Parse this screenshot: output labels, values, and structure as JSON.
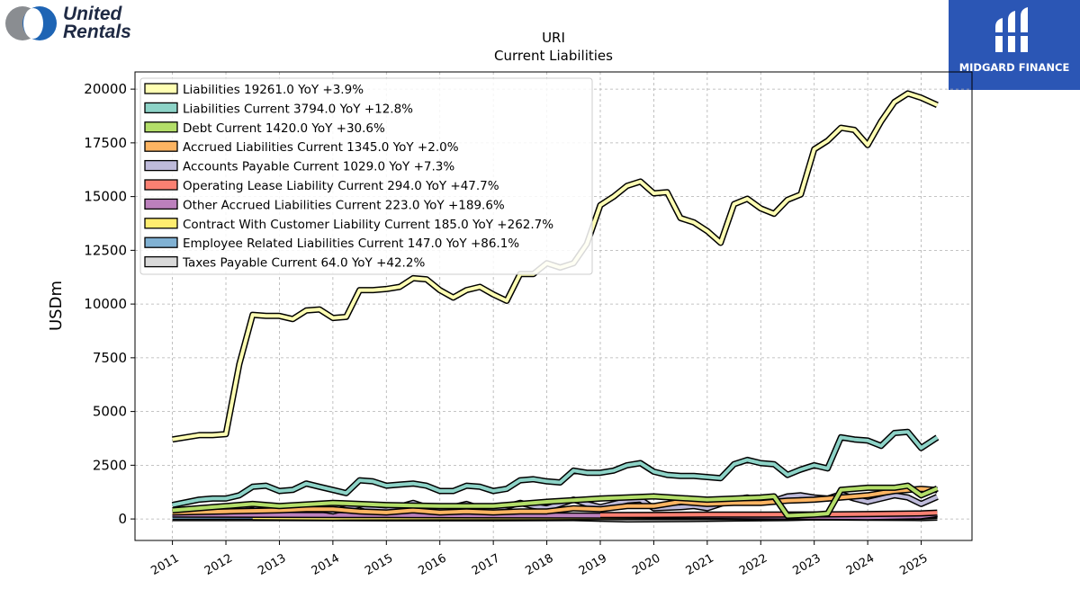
{
  "brand_left": {
    "line1": "United",
    "line2": "Rentals",
    "colors": [
      "#8a8d91",
      "#1e64b4"
    ]
  },
  "brand_right": {
    "text": "MIDGARD FINANCE",
    "color": "#2b56b5"
  },
  "chart_data": {
    "type": "line",
    "title": "URI",
    "subtitle": "Current  Liabilities",
    "xlabel": "",
    "ylabel": "USDm",
    "ylim": [
      -1000,
      20800
    ],
    "xlim": [
      2010.3,
      2025.95
    ],
    "yticks": [
      0,
      2500,
      5000,
      7500,
      10000,
      12500,
      15000,
      17500,
      20000
    ],
    "xticks": [
      "2011",
      "2012",
      "2013",
      "2014",
      "2015",
      "2016",
      "2017",
      "2018",
      "2019",
      "2020",
      "2021",
      "2022",
      "2023",
      "2024",
      "2025"
    ],
    "grid": true,
    "legend_position": "top-left",
    "series": [
      {
        "name": "Liabilities",
        "legend": "Liabilities  19261.0 YoY +3.9%",
        "color": "#ffffb3",
        "x": [
          2011,
          2011.5,
          2011.75,
          2012,
          2012.25,
          2012.5,
          2012.75,
          2013,
          2013.25,
          2013.5,
          2013.75,
          2014,
          2014.25,
          2014.5,
          2014.75,
          2015,
          2015.25,
          2015.5,
          2015.75,
          2016,
          2016.25,
          2016.5,
          2016.75,
          2017,
          2017.25,
          2017.5,
          2017.75,
          2018,
          2018.25,
          2018.5,
          2018.75,
          2019,
          2019.25,
          2019.5,
          2019.75,
          2020,
          2020.25,
          2020.5,
          2020.75,
          2021,
          2021.25,
          2021.5,
          2021.75,
          2022,
          2022.25,
          2022.5,
          2022.75,
          2023,
          2023.25,
          2023.5,
          2023.75,
          2024,
          2024.25,
          2024.5,
          2024.75,
          2025,
          2025.3
        ],
        "values": [
          3700,
          3900,
          3900,
          3950,
          7200,
          9500,
          9450,
          9450,
          9300,
          9700,
          9750,
          9350,
          9400,
          10650,
          10650,
          10700,
          10800,
          11200,
          11150,
          10650,
          10300,
          10650,
          10800,
          10450,
          10150,
          11400,
          11400,
          11900,
          11700,
          11900,
          12800,
          14600,
          15000,
          15500,
          15700,
          15150,
          15200,
          14000,
          13800,
          13400,
          12850,
          14650,
          14900,
          14450,
          14200,
          14850,
          15100,
          17200,
          17600,
          18200,
          18100,
          17400,
          18500,
          19400,
          19800,
          19600,
          19261
        ]
      },
      {
        "name": "Liabilities Current",
        "legend": "Liabilities Current  3794.0 YoY +12.8%",
        "color": "#8dd3c7",
        "x": [
          2011,
          2011.5,
          2011.75,
          2012,
          2012.25,
          2012.5,
          2012.75,
          2013,
          2013.25,
          2013.5,
          2013.75,
          2014,
          2014.25,
          2014.5,
          2014.75,
          2015,
          2015.25,
          2015.5,
          2015.75,
          2016,
          2016.25,
          2016.5,
          2016.75,
          2017,
          2017.25,
          2017.5,
          2017.75,
          2018,
          2018.25,
          2018.5,
          2018.75,
          2019,
          2019.25,
          2019.5,
          2019.75,
          2020,
          2020.25,
          2020.5,
          2020.75,
          2021,
          2021.25,
          2021.5,
          2021.75,
          2022,
          2022.25,
          2022.5,
          2022.75,
          2023,
          2023.25,
          2023.5,
          2023.75,
          2024,
          2024.25,
          2024.5,
          2024.75,
          2025,
          2025.3
        ],
        "values": [
          650,
          900,
          950,
          950,
          1100,
          1500,
          1550,
          1300,
          1350,
          1650,
          1500,
          1350,
          1200,
          1800,
          1750,
          1550,
          1600,
          1650,
          1550,
          1300,
          1300,
          1550,
          1500,
          1300,
          1400,
          1800,
          1850,
          1750,
          1700,
          2250,
          2150,
          2150,
          2250,
          2500,
          2600,
          2200,
          2050,
          2000,
          2000,
          1950,
          1900,
          2550,
          2750,
          2600,
          2550,
          2050,
          2300,
          2500,
          2350,
          3800,
          3700,
          3650,
          3400,
          4000,
          4050,
          3300,
          3794
        ]
      },
      {
        "name": "Debt Current",
        "legend": "Debt Current  1420.0 YoY +30.6%",
        "color": "#b3de69",
        "x": [
          2011,
          2012,
          2012.5,
          2013,
          2014,
          2015,
          2016,
          2017,
          2018,
          2019,
          2020,
          2021,
          2022,
          2022.25,
          2022.5,
          2023,
          2023.25,
          2023.5,
          2024,
          2024.5,
          2024.75,
          2025,
          2025.3
        ],
        "values": [
          400,
          600,
          700,
          600,
          750,
          650,
          600,
          600,
          800,
          950,
          1050,
          900,
          1000,
          1050,
          150,
          200,
          250,
          1350,
          1450,
          1450,
          1550,
          1100,
          1420
        ]
      },
      {
        "name": "Accrued Liabilities Current",
        "legend": "Accrued Liabilities Current  1345.0 YoY +2.0%",
        "color": "#fdb462",
        "x": [
          2011,
          2012,
          2013,
          2013.5,
          2014,
          2014.5,
          2015,
          2015.5,
          2016,
          2016.5,
          2017,
          2017.5,
          2018,
          2018.5,
          2019,
          2019.5,
          2020,
          2020.5,
          2021,
          2021.5,
          2022,
          2022.5,
          2023,
          2023.5,
          2024,
          2024.5,
          2025,
          2025.3
        ],
        "values": [
          300,
          350,
          400,
          450,
          450,
          350,
          300,
          400,
          300,
          350,
          300,
          350,
          350,
          500,
          450,
          600,
          600,
          800,
          700,
          750,
          750,
          850,
          900,
          1000,
          1100,
          1300,
          1400,
          1345
        ]
      },
      {
        "name": "Accounts Payable Current",
        "legend": "Accounts Payable Current  1029.0 YoY +7.3%",
        "color": "#bebada",
        "x": [
          2011,
          2011.5,
          2012,
          2012.5,
          2012.75,
          2013,
          2013.5,
          2013.75,
          2014,
          2014.5,
          2014.75,
          2015,
          2015.5,
          2015.75,
          2016,
          2016.5,
          2016.75,
          2017,
          2017.5,
          2017.75,
          2018,
          2018.5,
          2018.75,
          2019,
          2019.5,
          2019.75,
          2020,
          2020.5,
          2020.75,
          2021,
          2021.5,
          2021.75,
          2022,
          2022.25,
          2022.5,
          2022.75,
          2023,
          2023.25,
          2023.5,
          2023.75,
          2024,
          2024.25,
          2024.5,
          2024.75,
          2025,
          2025.3
        ],
        "values": [
          300,
          450,
          450,
          650,
          450,
          400,
          650,
          450,
          350,
          650,
          450,
          400,
          750,
          550,
          400,
          700,
          500,
          400,
          750,
          600,
          500,
          900,
          700,
          550,
          850,
          900,
          500,
          550,
          600,
          500,
          900,
          1000,
          800,
          850,
          1050,
          1100,
          1000,
          950,
          1150,
          950,
          800,
          950,
          1100,
          1000,
          700,
          1029
        ]
      },
      {
        "name": "Operating Lease Liability Current",
        "legend": "Operating Lease Liability Current  294.0 YoY +47.7%",
        "color": "#fb8072",
        "x": [
          2019,
          2020,
          2021,
          2022,
          2023,
          2024,
          2025,
          2025.3
        ],
        "values": [
          180,
          190,
          200,
          200,
          210,
          230,
          260,
          294
        ]
      },
      {
        "name": "Other Accrued Liabilities Current",
        "legend": "Other Accrued Liabilities Current  223.0 YoY +189.6%",
        "color": "#bc80bd",
        "x": [
          2011,
          2015,
          2020,
          2023,
          2024,
          2025,
          2025.3
        ],
        "values": [
          200,
          180,
          150,
          100,
          80,
          120,
          223
        ]
      },
      {
        "name": "Contract With Customer Liability Current",
        "legend": "Contract With Customer Liability Current  185.0 YoY +262.7%",
        "color": "#ffed6f",
        "x": [
          2012.5,
          2014,
          2016,
          2018,
          2020,
          2022,
          2024,
          2025.3
        ],
        "values": [
          80,
          60,
          70,
          80,
          90,
          100,
          110,
          185
        ]
      },
      {
        "name": "Employee Related Liabilities Current",
        "legend": "Employee Related Liabilities Current  147.0 YoY +86.1%",
        "color": "#80b1d3",
        "x": [
          2011,
          2014,
          2017,
          2020,
          2023,
          2025,
          2025.3
        ],
        "values": [
          100,
          110,
          100,
          90,
          100,
          110,
          147
        ]
      },
      {
        "name": "Taxes Payable Current",
        "legend": "Taxes Payable Current  64.0 YoY +42.2%",
        "color": "#d9d9d9",
        "x": [
          2011,
          2013,
          2015,
          2017,
          2018.5,
          2019.5,
          2020.5,
          2021.5,
          2022.5,
          2023,
          2024,
          2025,
          2025.3
        ],
        "values": [
          40,
          40,
          30,
          30,
          40,
          -20,
          -10,
          20,
          40,
          70,
          60,
          40,
          64
        ]
      }
    ]
  }
}
